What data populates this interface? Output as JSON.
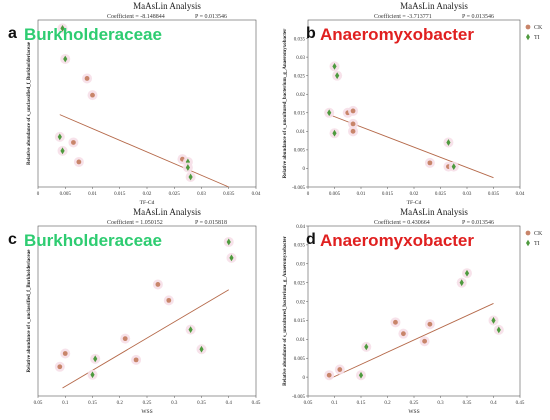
{
  "chart_data": [
    {
      "type": "scatter",
      "panel_letter": "a",
      "title": "MaAsLin Analysis",
      "taxon_label": "Burkholderaceae",
      "taxon_color": "#2ecc71",
      "coefficient_text": "Coefficient = -8.148844",
      "p_text": "P = 0.013546",
      "xlabel": "TF-Cd",
      "ylabel": "Relative abundance of s_unclassified_f_Burkholderiaceae",
      "xlim": [
        0,
        0.04
      ],
      "ylim": [
        0,
        0.3
      ],
      "xticks": [
        "0",
        "0.005",
        "0.01",
        "0.015",
        "0.02",
        "0.025",
        "0.03",
        "0.035",
        "0.04"
      ],
      "yticks": [],
      "legend": null,
      "series": [
        {
          "name": "CK",
          "points": [
            [
              0.0065,
              0.08
            ],
            [
              0.0075,
              0.045
            ],
            [
              0.01,
              0.165
            ],
            [
              0.0265,
              0.05
            ],
            [
              0.009,
              0.195
            ]
          ]
        },
        {
          "name": "TI",
          "points": [
            [
              0.0045,
              0.285
            ],
            [
              0.005,
              0.23
            ],
            [
              0.004,
              0.09
            ],
            [
              0.0045,
              0.065
            ],
            [
              0.0275,
              0.045
            ],
            [
              0.028,
              0.018
            ],
            [
              0.0275,
              0.035
            ]
          ]
        }
      ],
      "fit": {
        "x0": 0.004,
        "y0": 0.13,
        "x1": 0.035,
        "y1": 0.0
      }
    },
    {
      "type": "scatter",
      "panel_letter": "b",
      "title": "MaAsLin Analysis",
      "taxon_label": "Anaeromyxobacter",
      "taxon_color": "#e02020",
      "coefficient_text": "Coefficient = -3.713771",
      "p_text": "P = 0.013546",
      "xlabel": "TF-Cd",
      "ylabel": "Relative abundance of s_uncultured_bacterium_g_Anaeromyxobacter",
      "xlim": [
        0,
        0.04
      ],
      "ylim": [
        -0.005,
        0.04
      ],
      "xticks": [
        "0",
        "0.005",
        "0.01",
        "0.015",
        "0.02",
        "0.025",
        "0.03",
        "0.035",
        "0.04"
      ],
      "yticks": [
        "-0.005",
        "0",
        "0.005",
        "0.01",
        "0.015",
        "0.02",
        "0.025",
        "0.03",
        "0.035"
      ],
      "legend": [
        "CK",
        "TI"
      ],
      "series": [
        {
          "name": "CK",
          "points": [
            [
              0.0075,
              0.015
            ],
            [
              0.0085,
              0.012
            ],
            [
              0.0085,
              0.01
            ],
            [
              0.0085,
              0.0155
            ],
            [
              0.023,
              0.0015
            ],
            [
              0.0265,
              0.0005
            ]
          ]
        },
        {
          "name": "TI",
          "points": [
            [
              0.004,
              0.015
            ],
            [
              0.005,
              0.0275
            ],
            [
              0.0055,
              0.025
            ],
            [
              0.005,
              0.0095
            ],
            [
              0.0265,
              0.007
            ],
            [
              0.0275,
              0.0005
            ]
          ]
        }
      ],
      "fit": {
        "x0": 0.004,
        "y0": 0.0145,
        "x1": 0.035,
        "y1": -0.0025
      }
    },
    {
      "type": "scatter",
      "panel_letter": "c",
      "title": "MaAsLin Analysis",
      "taxon_label": "Burkholderaceae",
      "taxon_color": "#2ecc71",
      "coefficient_text": "Coefficient = 1.050152",
      "p_text": "P = 0.015818",
      "xlabel": "WSS",
      "ylabel": "Relative abundance of s_unclassified_f_Burkholderiaceae",
      "xlim": [
        0.05,
        0.45
      ],
      "ylim": [
        -0.02,
        0.3
      ],
      "xticks": [
        "0.05",
        "0.1",
        "0.15",
        "0.2",
        "0.25",
        "0.3",
        "0.35",
        "0.4",
        "0.45"
      ],
      "yticks": [],
      "legend": null,
      "series": [
        {
          "name": "CK",
          "points": [
            [
              0.09,
              0.035
            ],
            [
              0.1,
              0.06
            ],
            [
              0.21,
              0.088
            ],
            [
              0.23,
              0.048
            ],
            [
              0.27,
              0.19
            ],
            [
              0.29,
              0.16
            ]
          ]
        },
        {
          "name": "TI",
          "points": [
            [
              0.15,
              0.02
            ],
            [
              0.155,
              0.05
            ],
            [
              0.33,
              0.105
            ],
            [
              0.35,
              0.068
            ],
            [
              0.4,
              0.27
            ],
            [
              0.405,
              0.24
            ]
          ]
        }
      ],
      "fit": {
        "x0": 0.095,
        "y0": -0.005,
        "x1": 0.4,
        "y1": 0.18
      }
    },
    {
      "type": "scatter",
      "panel_letter": "d",
      "title": "MaAsLin Analysis",
      "taxon_label": "Anaeromyxobacter",
      "taxon_color": "#e02020",
      "coefficient_text": "Coefficient = 0.430664",
      "p_text": "P = 0.013546",
      "xlabel": "WSS",
      "ylabel": "Relative abundance of s_uncultured_bacterium_g_Anaeromyxobacter",
      "xlim": [
        0.05,
        0.45
      ],
      "ylim": [
        -0.005,
        0.04
      ],
      "xticks": [
        "0.05",
        "0.1",
        "0.15",
        "0.2",
        "0.25",
        "0.3",
        "0.35",
        "0.4",
        "0.45"
      ],
      "yticks": [
        "-0.005",
        "0",
        "0.005",
        "0.01",
        "0.015",
        "0.02",
        "0.025",
        "0.03",
        "0.035",
        "0.04"
      ],
      "legend": [
        "CK",
        "TI"
      ],
      "series": [
        {
          "name": "CK",
          "points": [
            [
              0.09,
              0.0005
            ],
            [
              0.11,
              0.002
            ],
            [
              0.215,
              0.0145
            ],
            [
              0.23,
              0.0115
            ],
            [
              0.27,
              0.0095
            ],
            [
              0.28,
              0.014
            ]
          ]
        },
        {
          "name": "TI",
          "points": [
            [
              0.15,
              0.0005
            ],
            [
              0.16,
              0.008
            ],
            [
              0.34,
              0.025
            ],
            [
              0.35,
              0.0275
            ],
            [
              0.4,
              0.015
            ],
            [
              0.41,
              0.0125
            ]
          ]
        }
      ],
      "fit": {
        "x0": 0.09,
        "y0": -0.0005,
        "x1": 0.4,
        "y1": 0.0195
      }
    }
  ],
  "colors": {
    "ck_marker": "#c8856a",
    "ti_marker": "#4e9a3e",
    "fit_line": "#b5694a",
    "halo": "#f6dfe8"
  }
}
